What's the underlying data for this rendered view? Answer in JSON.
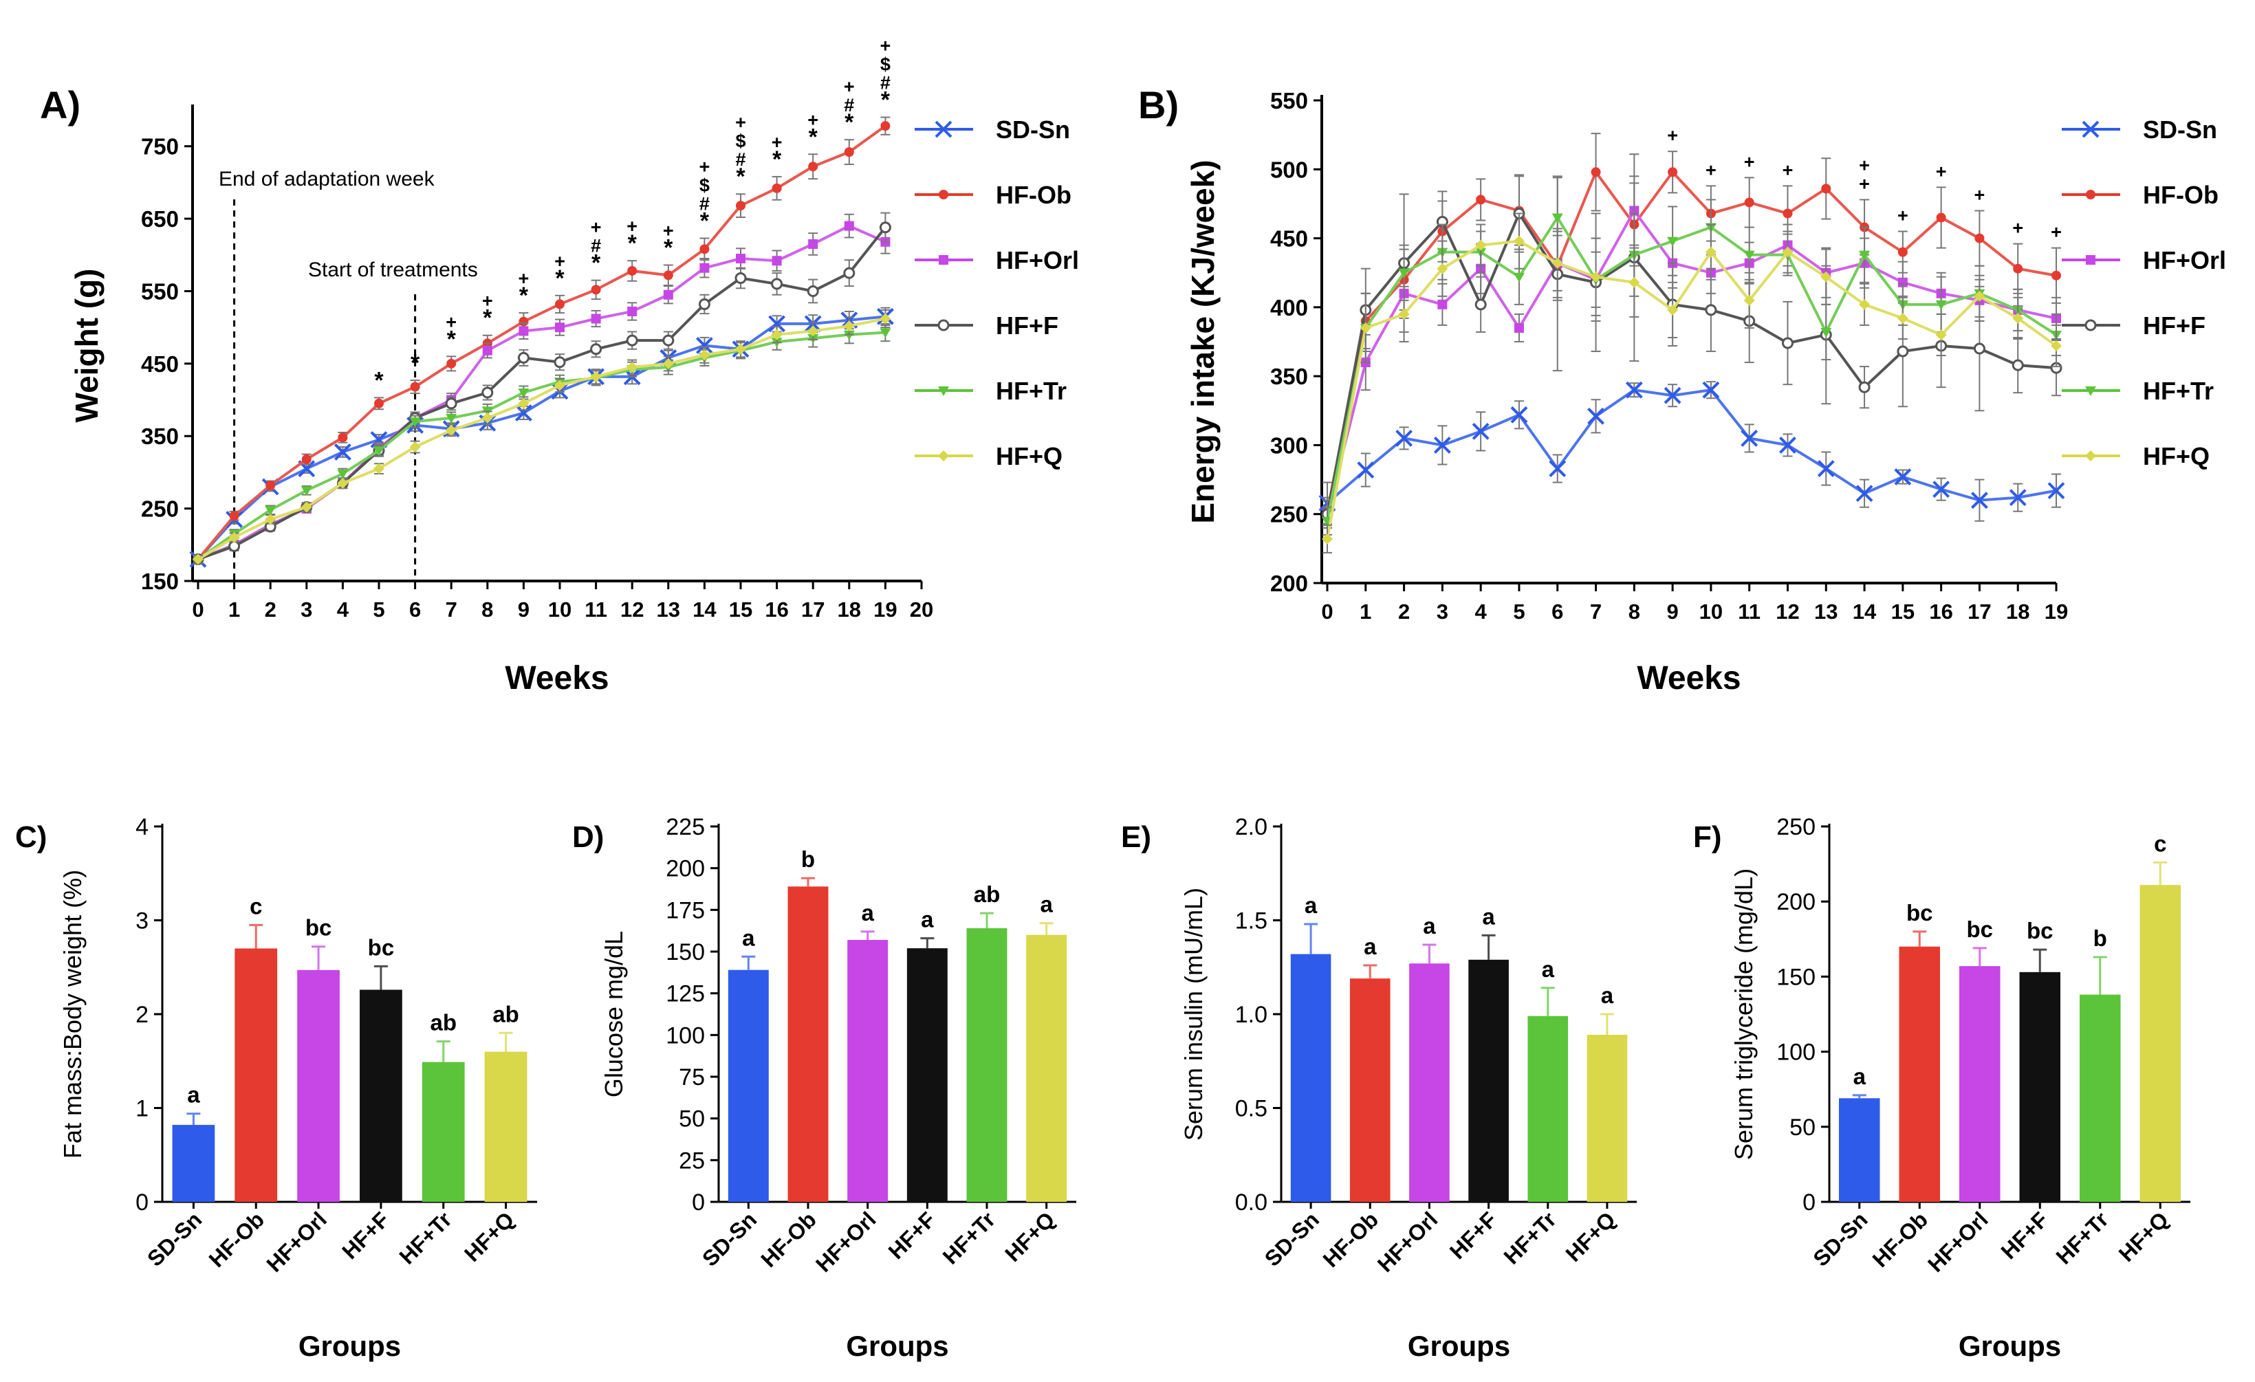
{
  "figure": {
    "group_colors": {
      "SD-Sn": "#2e5bea",
      "HF-Ob": "#e53a2f",
      "HF+Orl": "#c646e6",
      "HF+F": "#111111",
      "HF+Tr": "#5cc43a",
      "HF+Q": "#d8d84a"
    }
  },
  "chart_data": [
    {
      "panel": "A)",
      "type": "line",
      "ylabel": "Weight (g)",
      "xlabel": "Weeks",
      "xlim": [
        0,
        20
      ],
      "xticks": [
        0,
        1,
        2,
        3,
        4,
        5,
        6,
        7,
        8,
        9,
        10,
        11,
        12,
        13,
        14,
        15,
        16,
        17,
        18,
        19,
        20
      ],
      "ylim": [
        150,
        800
      ],
      "yticks": [
        150,
        250,
        350,
        450,
        550,
        650,
        750
      ],
      "annotations": [
        {
          "text": "End of adaptation week",
          "at_week": 1
        },
        {
          "text": "Start of treatments",
          "at_week": 6
        }
      ],
      "significance": [
        {
          "week": 5,
          "marks": [
            "*"
          ]
        },
        {
          "week": 6,
          "marks": [
            "*"
          ]
        },
        {
          "week": 7,
          "marks": [
            "*",
            "+"
          ]
        },
        {
          "week": 8,
          "marks": [
            "*",
            "+"
          ]
        },
        {
          "week": 9,
          "marks": [
            "*",
            "+"
          ]
        },
        {
          "week": 10,
          "marks": [
            "*",
            "+"
          ]
        },
        {
          "week": 11,
          "marks": [
            "*",
            "#",
            "+"
          ]
        },
        {
          "week": 12,
          "marks": [
            "*",
            "+"
          ]
        },
        {
          "week": 13,
          "marks": [
            "*",
            "+"
          ]
        },
        {
          "week": 14,
          "marks": [
            "*",
            "#",
            "$",
            "+"
          ]
        },
        {
          "week": 15,
          "marks": [
            "*",
            "#",
            "$",
            "+"
          ]
        },
        {
          "week": 16,
          "marks": [
            "*",
            "+"
          ]
        },
        {
          "week": 17,
          "marks": [
            "*",
            "+"
          ]
        },
        {
          "week": 18,
          "marks": [
            "*",
            "#",
            "+"
          ]
        },
        {
          "week": 19,
          "marks": [
            "*",
            "#",
            "$",
            "+"
          ]
        }
      ],
      "series": [
        {
          "name": "SD-Sn",
          "marker": "x",
          "values": [
            180,
            235,
            280,
            305,
            328,
            345,
            365,
            360,
            368,
            382,
            412,
            432,
            432,
            458,
            475,
            470,
            505,
            505,
            510,
            515
          ],
          "errors": [
            5,
            6,
            6,
            6,
            7,
            7,
            8,
            8,
            9,
            9,
            9,
            10,
            10,
            10,
            11,
            11,
            11,
            12,
            12,
            12
          ]
        },
        {
          "name": "HF-Ob",
          "marker": "o",
          "values": [
            180,
            240,
            282,
            318,
            348,
            395,
            418,
            450,
            478,
            508,
            532,
            552,
            578,
            572,
            608,
            668,
            692,
            722,
            742,
            778
          ],
          "errors": [
            5,
            6,
            6,
            7,
            7,
            8,
            9,
            10,
            11,
            12,
            12,
            13,
            14,
            14,
            15,
            16,
            16,
            17,
            17,
            12
          ]
        },
        {
          "name": "HF+Orl",
          "marker": "s",
          "values": [
            180,
            200,
            228,
            250,
            285,
            333,
            375,
            400,
            468,
            495,
            500,
            512,
            522,
            545,
            582,
            595,
            592,
            615,
            640,
            618
          ],
          "errors": [
            5,
            6,
            6,
            6,
            7,
            8,
            8,
            9,
            10,
            11,
            11,
            11,
            12,
            12,
            13,
            14,
            14,
            15,
            16,
            16
          ]
        },
        {
          "name": "HF+F",
          "marker": "oo",
          "values": [
            180,
            198,
            225,
            252,
            285,
            330,
            375,
            395,
            410,
            458,
            452,
            470,
            482,
            482,
            532,
            568,
            560,
            550,
            575,
            638
          ],
          "errors": [
            5,
            6,
            6,
            6,
            7,
            8,
            8,
            9,
            10,
            11,
            11,
            11,
            12,
            12,
            13,
            14,
            15,
            16,
            18,
            20
          ]
        },
        {
          "name": "HF+Tr",
          "marker": "v",
          "values": [
            180,
            215,
            248,
            275,
            298,
            330,
            370,
            375,
            385,
            410,
            425,
            430,
            442,
            445,
            458,
            468,
            480,
            485,
            490,
            493
          ],
          "errors": [
            5,
            6,
            6,
            6,
            7,
            7,
            8,
            8,
            9,
            9,
            9,
            10,
            10,
            10,
            11,
            11,
            11,
            12,
            12,
            12
          ]
        },
        {
          "name": "HF+Q",
          "marker": "d",
          "values": [
            180,
            210,
            235,
            252,
            285,
            305,
            335,
            358,
            375,
            395,
            420,
            432,
            445,
            450,
            462,
            470,
            490,
            495,
            502,
            512
          ],
          "errors": [
            5,
            6,
            6,
            6,
            7,
            7,
            8,
            8,
            9,
            9,
            9,
            10,
            10,
            10,
            11,
            11,
            11,
            12,
            12,
            12
          ]
        }
      ]
    },
    {
      "panel": "B)",
      "type": "line",
      "ylabel": "Energy intake (KJ/week)",
      "xlabel": "Weeks",
      "xlim": [
        0,
        19
      ],
      "xticks": [
        0,
        1,
        2,
        3,
        4,
        5,
        6,
        7,
        8,
        9,
        10,
        11,
        12,
        13,
        14,
        15,
        16,
        17,
        18,
        19
      ],
      "ylim": [
        200,
        550
      ],
      "yticks": [
        200,
        250,
        300,
        350,
        400,
        450,
        500,
        550
      ],
      "significance": [
        {
          "week": 9,
          "marks": [
            "+"
          ]
        },
        {
          "week": 10,
          "marks": [
            "+"
          ]
        },
        {
          "week": 11,
          "marks": [
            "+"
          ]
        },
        {
          "week": 12,
          "marks": [
            "+"
          ]
        },
        {
          "week": 14,
          "marks": [
            "+",
            "+"
          ]
        },
        {
          "week": 15,
          "marks": [
            "+"
          ]
        },
        {
          "week": 16,
          "marks": [
            "+"
          ]
        },
        {
          "week": 17,
          "marks": [
            "+"
          ]
        },
        {
          "week": 18,
          "marks": [
            "+"
          ]
        },
        {
          "week": 19,
          "marks": [
            "+"
          ]
        }
      ],
      "series": [
        {
          "name": "SD-Sn",
          "marker": "x",
          "values": [
            258,
            282,
            305,
            300,
            310,
            322,
            283,
            321,
            340,
            336,
            340,
            305,
            300,
            283,
            265,
            277,
            268,
            260,
            262,
            267
          ],
          "errors": [
            15,
            12,
            8,
            14,
            14,
            10,
            10,
            12,
            5,
            8,
            6,
            10,
            8,
            12,
            10,
            5,
            8,
            15,
            10,
            12
          ]
        },
        {
          "name": "HF-Ob",
          "marker": "o",
          "values": [
            252,
            390,
            420,
            455,
            478,
            470,
            430,
            498,
            460,
            498,
            468,
            476,
            468,
            486,
            458,
            440,
            465,
            450,
            428,
            423
          ],
          "errors": [
            10,
            20,
            22,
            22,
            15,
            25,
            25,
            28,
            30,
            15,
            20,
            18,
            20,
            22,
            20,
            15,
            22,
            20,
            18,
            20
          ]
        },
        {
          "name": "HF+Orl",
          "marker": "s",
          "values": [
            250,
            360,
            410,
            402,
            428,
            385,
            432,
            420,
            470,
            432,
            425,
            432,
            445,
            425,
            432,
            418,
            410,
            405,
            398,
            392
          ],
          "errors": [
            10,
            20,
            18,
            15,
            18,
            10,
            20,
            20,
            25,
            18,
            15,
            15,
            15,
            18,
            18,
            15,
            15,
            15,
            15,
            15
          ]
        },
        {
          "name": "HF+F",
          "marker": "oo",
          "values": [
            250,
            398,
            432,
            462,
            402,
            468,
            424,
            418,
            436,
            402,
            398,
            390,
            374,
            380,
            342,
            368,
            372,
            370,
            358,
            356
          ],
          "errors": [
            10,
            30,
            50,
            22,
            20,
            28,
            70,
            50,
            75,
            30,
            30,
            30,
            30,
            50,
            15,
            40,
            30,
            45,
            20,
            20
          ]
        },
        {
          "name": "HF+Tr",
          "marker": "v",
          "values": [
            245,
            385,
            425,
            440,
            440,
            422,
            465,
            420,
            438,
            448,
            458,
            438,
            438,
            382,
            438,
            402,
            402,
            410,
            398,
            380
          ],
          "errors": [
            10,
            25,
            20,
            20,
            15,
            20,
            30,
            30,
            30,
            25,
            20,
            20,
            15,
            20,
            20,
            15,
            20,
            20,
            15,
            15
          ]
        },
        {
          "name": "HF+Q",
          "marker": "d",
          "values": [
            232,
            385,
            395,
            428,
            445,
            448,
            432,
            422,
            418,
            398,
            440,
            405,
            440,
            422,
            402,
            392,
            380,
            408,
            392,
            372
          ],
          "errors": [
            10,
            25,
            20,
            20,
            15,
            20,
            25,
            28,
            25,
            20,
            20,
            20,
            15,
            20,
            15,
            15,
            15,
            15,
            15,
            15
          ]
        }
      ]
    },
    {
      "panel": "C)",
      "type": "bar",
      "ylabel": "Fat mass:Body weight (%)",
      "xlabel": "Groups",
      "categories": [
        "SD-Sn",
        "HF-Ob",
        "HF+Orl",
        "HF+F",
        "HF+Tr",
        "HF+Q"
      ],
      "values": [
        0.82,
        2.7,
        2.47,
        2.26,
        1.49,
        1.6
      ],
      "errors": [
        0.12,
        0.25,
        0.25,
        0.25,
        0.22,
        0.2
      ],
      "letters": [
        "a",
        "c",
        "bc",
        "bc",
        "ab",
        "ab"
      ],
      "ylim": [
        0,
        4
      ],
      "yticks": [
        0,
        1,
        2,
        3,
        4
      ],
      "ytick_labels": [
        "0",
        "1",
        "2",
        "3",
        "4"
      ]
    },
    {
      "panel": "D)",
      "type": "bar",
      "ylabel": "Glucose mg/dL",
      "xlabel": "Groups",
      "categories": [
        "SD-Sn",
        "HF-Ob",
        "HF+Orl",
        "HF+F",
        "HF+Tr",
        "HF+Q"
      ],
      "values": [
        139,
        189,
        157,
        152,
        164,
        160
      ],
      "errors": [
        8,
        5,
        5,
        6,
        9,
        7
      ],
      "letters": [
        "a",
        "b",
        "a",
        "a",
        "ab",
        "a"
      ],
      "ylim": [
        0,
        225
      ],
      "yticks": [
        0,
        25,
        50,
        75,
        100,
        125,
        150,
        175,
        200,
        225
      ],
      "ytick_labels": [
        "0",
        "25",
        "50",
        "75",
        "100",
        "125",
        "150",
        "175",
        "200",
        "225"
      ]
    },
    {
      "panel": "E)",
      "type": "bar",
      "ylabel": "Serum insulin (mU/mL)",
      "xlabel": "Groups",
      "categories": [
        "SD-Sn",
        "HF-Ob",
        "HF+Orl",
        "HF+F",
        "HF+Tr",
        "HF+Q"
      ],
      "values": [
        1.32,
        1.19,
        1.27,
        1.29,
        0.99,
        0.89
      ],
      "errors": [
        0.16,
        0.07,
        0.1,
        0.13,
        0.15,
        0.11
      ],
      "letters": [
        "a",
        "a",
        "a",
        "a",
        "a",
        "a"
      ],
      "ylim": [
        0,
        2
      ],
      "yticks": [
        0,
        0.5,
        1,
        1.5,
        2
      ],
      "ytick_labels": [
        "0.0",
        "0.5",
        "1.0",
        "1.5",
        "2.0"
      ]
    },
    {
      "panel": "F)",
      "type": "bar",
      "ylabel": "Serum triglyceride (mg/dL)",
      "xlabel": "Groups",
      "categories": [
        "SD-Sn",
        "HF-Ob",
        "HF+Orl",
        "HF+F",
        "HF+Tr",
        "HF+Q"
      ],
      "values": [
        69,
        170,
        157,
        153,
        138,
        211
      ],
      "errors": [
        2,
        10,
        12,
        15,
        25,
        15
      ],
      "letters": [
        "a",
        "bc",
        "bc",
        "bc",
        "b",
        "c"
      ],
      "ylim": [
        0,
        250
      ],
      "yticks": [
        0,
        50,
        100,
        150,
        200,
        250
      ],
      "ytick_labels": [
        "0",
        "50",
        "100",
        "150",
        "200",
        "250"
      ]
    }
  ]
}
